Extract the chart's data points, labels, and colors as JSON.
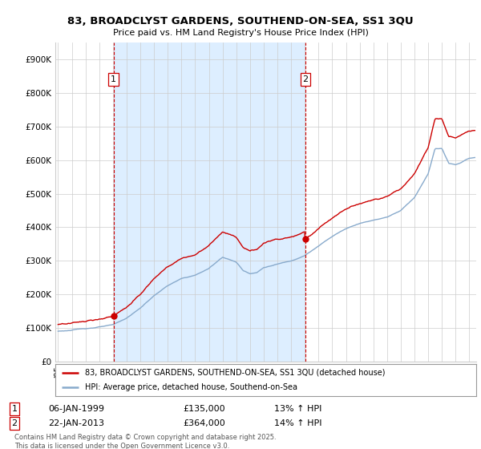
{
  "title": "83, BROADCLYST GARDENS, SOUTHEND-ON-SEA, SS1 3QU",
  "subtitle": "Price paid vs. HM Land Registry's House Price Index (HPI)",
  "legend_line1": "83, BROADCLYST GARDENS, SOUTHEND-ON-SEA, SS1 3QU (detached house)",
  "legend_line2": "HPI: Average price, detached house, Southend-on-Sea",
  "footnote": "Contains HM Land Registry data © Crown copyright and database right 2025.\nThis data is licensed under the Open Government Licence v3.0.",
  "annotation1_label": "1",
  "annotation1_date": "06-JAN-1999",
  "annotation1_price": "£135,000",
  "annotation1_hpi": "13% ↑ HPI",
  "annotation2_label": "2",
  "annotation2_date": "22-JAN-2013",
  "annotation2_price": "£364,000",
  "annotation2_hpi": "14% ↑ HPI",
  "red_color": "#cc0000",
  "blue_color": "#88aacc",
  "shade_color": "#ddeeff",
  "vline_color": "#cc0000",
  "grid_color": "#cccccc",
  "bg_color": "#ffffff",
  "ylim": [
    0,
    950000
  ],
  "yticks": [
    0,
    100000,
    200000,
    300000,
    400000,
    500000,
    600000,
    700000,
    800000,
    900000
  ],
  "ytick_labels": [
    "£0",
    "£100K",
    "£200K",
    "£300K",
    "£400K",
    "£500K",
    "£600K",
    "£700K",
    "£800K",
    "£900K"
  ],
  "vline1_x": 1999.05,
  "vline2_x": 2013.05,
  "marker1_x": 1999.05,
  "marker1_y": 135000,
  "marker2_x": 2013.05,
  "marker2_y": 364000,
  "xlim_start": 1994.8,
  "xlim_end": 2025.5
}
